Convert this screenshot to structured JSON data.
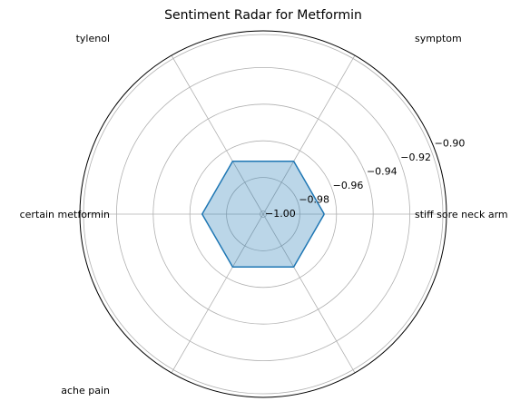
{
  "chart_data": {
    "type": "radar",
    "title": "Sentiment Radar for Metformin",
    "categories": [
      "stiff sore neck arm",
      "symptom",
      "tylenol",
      "certain metformin",
      "ache pain",
      ""
    ],
    "series": [
      {
        "values": [
          -0.9667,
          -0.9667,
          -0.9667,
          -0.9667,
          -0.9667,
          -0.9667
        ]
      }
    ],
    "rlim": [
      -1.0,
      -0.9
    ],
    "rticks": [
      -1.0,
      -0.98,
      -0.96,
      -0.94,
      -0.92,
      -0.9
    ],
    "rtick_labels": [
      "−1.00",
      "−0.98",
      "−0.96",
      "−0.94",
      "−0.92",
      "−0.90"
    ],
    "grid": true,
    "colors": {
      "line": "#1f77b4",
      "fill": "#1f77b4",
      "grid": "#b0b0b0"
    }
  }
}
